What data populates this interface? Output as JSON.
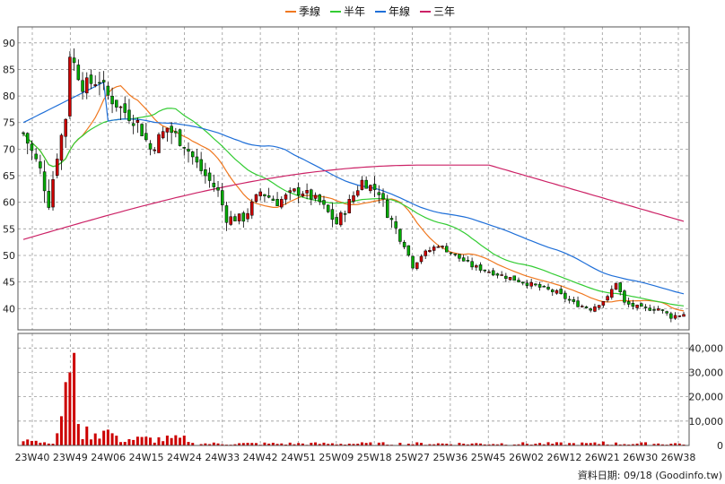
{
  "chart_data": {
    "type": "candlestick",
    "legend": [
      {
        "name": "季線",
        "color": "#f07820"
      },
      {
        "name": "半年",
        "color": "#33cc33"
      },
      {
        "name": "年線",
        "color": "#1f6fd8"
      },
      {
        "name": "三年",
        "color": "#cc2266"
      }
    ],
    "price_axis": {
      "ticks": [
        90,
        85,
        80,
        75,
        70,
        65,
        60,
        55,
        50,
        45,
        40
      ],
      "ylim": [
        36,
        93
      ]
    },
    "volume_axis": {
      "ticks": [
        "40,000",
        "30,000",
        "20,000",
        "10,000",
        "0"
      ],
      "ylim": [
        0,
        46000
      ]
    },
    "x_tick_labels": [
      "23W40",
      "23W49",
      "24W06",
      "24W15",
      "24W24",
      "24W33",
      "24W42",
      "24W51",
      "25W09",
      "25W18",
      "25W27",
      "25W36",
      "25W45",
      "26W02",
      "26W12",
      "26W21",
      "26W30",
      "26W38"
    ],
    "colors": {
      "up": "#cc0000",
      "down": "#00aa00",
      "volume": "#cc0000",
      "grid": "#999999"
    },
    "footer": "資料日期: 09/18  (Goodinfo.tw)"
  }
}
